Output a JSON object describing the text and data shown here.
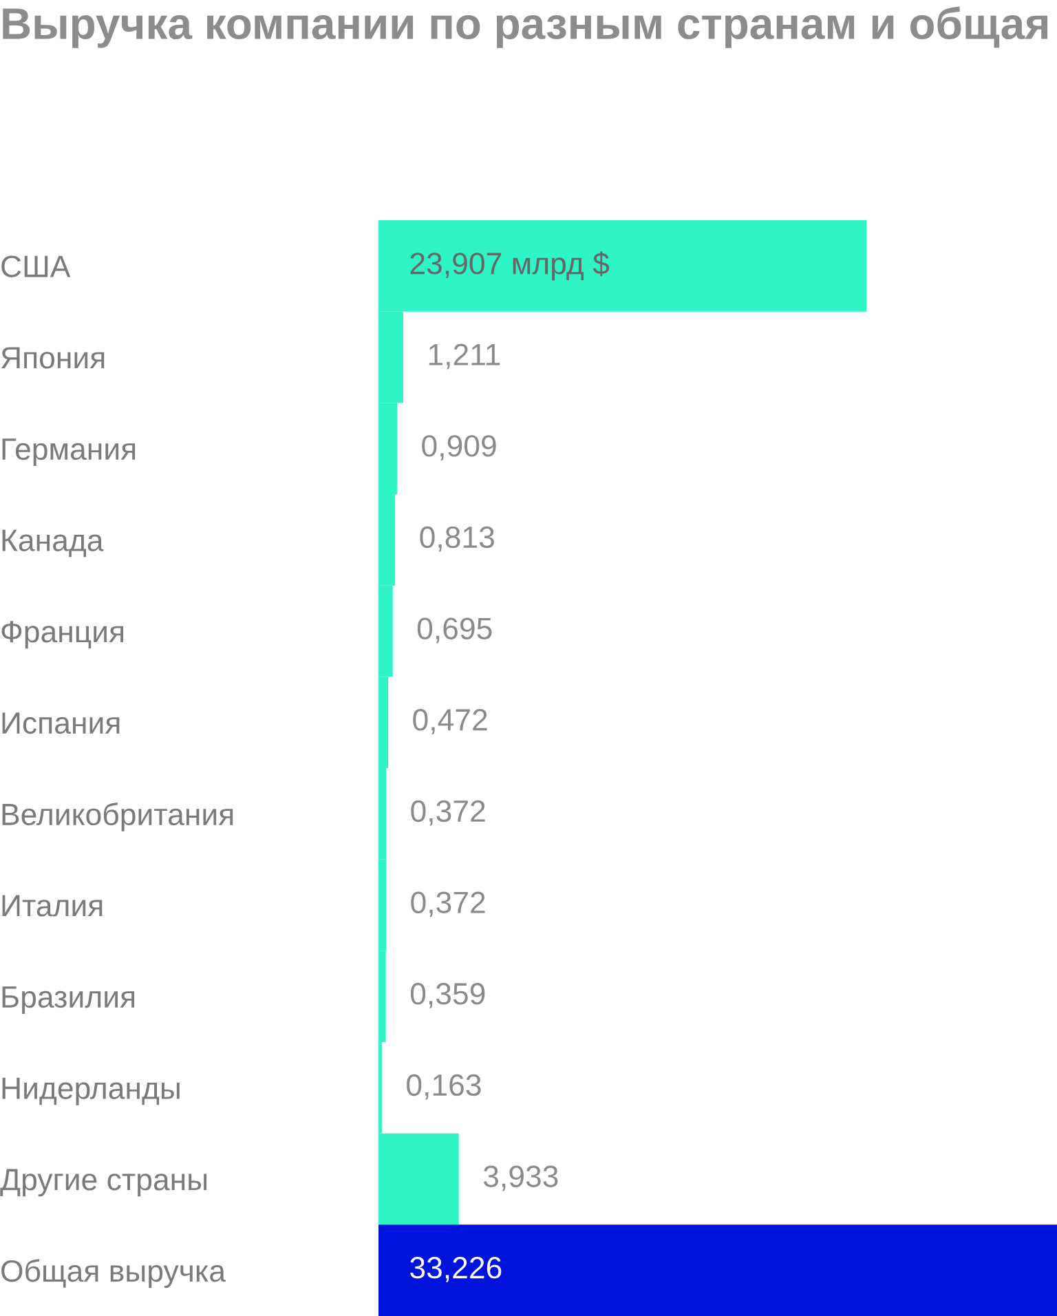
{
  "chart_data": {
    "type": "bar",
    "orientation": "horizontal",
    "title": "Выручка компании по разным странам и общая",
    "categories": [
      "США",
      "Япония",
      "Германия",
      "Канада",
      "Франция",
      "Испания",
      "Великобритания",
      "Италия",
      "Бразилия",
      "Нидерланды",
      "Другие страны",
      "Общая выручка"
    ],
    "values": [
      23.907,
      1.211,
      0.909,
      0.813,
      0.695,
      0.472,
      0.372,
      0.372,
      0.359,
      0.163,
      3.933,
      33.226
    ],
    "colors": [
      "#2ff5c6",
      "#2ff5c6",
      "#2ff5c6",
      "#2ff5c6",
      "#2ff5c6",
      "#2ff5c6",
      "#2ff5c6",
      "#2ff5c6",
      "#2ff5c6",
      "#2ff5c6",
      "#2ff5c6",
      "#0014dc"
    ],
    "value_labels": [
      "23,907 млрд $",
      "1,211",
      "0,909",
      "0,813",
      "0,695",
      "0,472",
      "0,372",
      "0,372",
      "0,359",
      "0,163",
      "3,933",
      "33,226"
    ],
    "tick_labels": "y",
    "grid": false,
    "legend": false
  }
}
